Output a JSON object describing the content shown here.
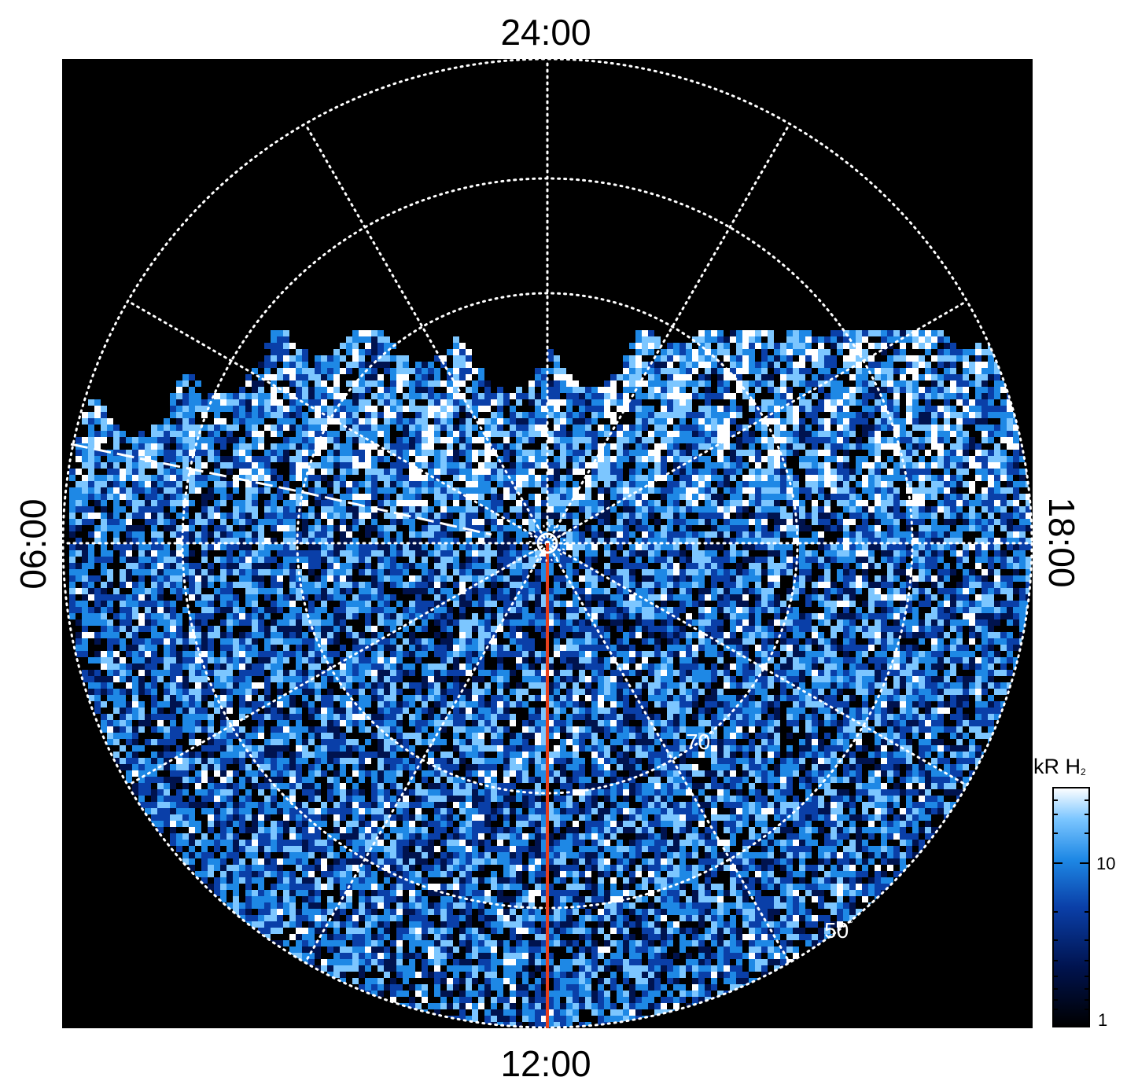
{
  "local_time_labels": {
    "top": "24:00",
    "bottom": "12:00",
    "left": "06:00",
    "right": "18:00"
  },
  "latitude_labels": {
    "lat_70": "70",
    "lat_50": "50",
    "degree_symbol": "°"
  },
  "colorbar": {
    "title_prefix": "kR H",
    "title_subscript": "2",
    "ticks": [
      "10",
      "1"
    ],
    "scale": "log",
    "range": [
      1,
      25
    ]
  },
  "colors": {
    "background_panel": "#000000",
    "grid": "#ffffff",
    "meridian_line": "#e8401c",
    "colormap": [
      "#000000",
      "#00134f",
      "#0a3fa8",
      "#1e88e5",
      "#7cc6ff",
      "#ffffff"
    ]
  }
}
